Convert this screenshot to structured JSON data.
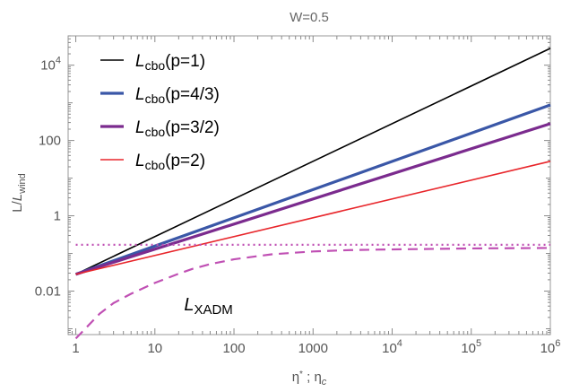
{
  "chart_data": {
    "type": "line",
    "title": "W=0.5",
    "xlabel": {
      "main": "η",
      "sub1": "*",
      "sep": " ; η",
      "sub2": "c"
    },
    "ylabel": {
      "main": "L/",
      "italic": "L",
      "sub": "wind"
    },
    "xscale": "log",
    "yscale": "log",
    "xlim": [
      0.8,
      1000000
    ],
    "ylim": [
      0.0007,
      60000
    ],
    "x_ticks": [
      {
        "value": 1,
        "label": "1"
      },
      {
        "value": 10,
        "label": "10"
      },
      {
        "value": 100,
        "label": "100"
      },
      {
        "value": 1000,
        "label": "1000"
      },
      {
        "value": 10000,
        "base": "10",
        "exp": "4"
      },
      {
        "value": 100000,
        "base": "10",
        "exp": "5"
      },
      {
        "value": 1000000,
        "base": "10",
        "exp": "6"
      }
    ],
    "y_ticks": [
      {
        "value": 0.01,
        "label": "0.01"
      },
      {
        "value": 1,
        "label": "1"
      },
      {
        "value": 100,
        "label": "100"
      },
      {
        "value": 10000,
        "base": "10",
        "exp": "4"
      }
    ],
    "series": [
      {
        "name": "L_cbo(p=1)",
        "label_main": "L",
        "label_sub": "cbo",
        "label_rest": "(p=1)",
        "color": "#000000",
        "style": "solid",
        "width": 1.6,
        "x": [
          1,
          1000000
        ],
        "y": [
          0.028,
          28000
        ]
      },
      {
        "name": "L_cbo(p=4/3)",
        "label_main": "L",
        "label_sub": "cbo",
        "label_rest": "(p=4/3)",
        "color": "#3a57a7",
        "style": "solid",
        "width": 3.2,
        "x": [
          1,
          1000000
        ],
        "y": [
          0.028,
          880
        ]
      },
      {
        "name": "L_cbo(p=3/2)",
        "label_main": "L",
        "label_sub": "cbo",
        "label_rest": "(p=3/2)",
        "color": "#7b2b8e",
        "style": "solid",
        "width": 3.2,
        "x": [
          1,
          1000000
        ],
        "y": [
          0.028,
          280
        ]
      },
      {
        "name": "L_cbo(p=2)",
        "label_main": "L",
        "label_sub": "cbo",
        "label_rest": "(p=2)",
        "color": "#e8262b",
        "style": "solid",
        "width": 1.6,
        "x": [
          1,
          1000000
        ],
        "y": [
          0.028,
          28
        ]
      },
      {
        "name": "",
        "color": "#c050b4",
        "style": "dotted",
        "width": 2.2,
        "x": [
          1,
          1000000
        ],
        "y": [
          0.17,
          0.17
        ]
      },
      {
        "name": "L_XADM",
        "color": "#c050b4",
        "style": "dashed",
        "width": 2.2,
        "x": [
          1,
          2,
          3,
          5,
          10,
          20,
          30,
          50,
          100,
          300,
          1000,
          3000,
          10000,
          100000,
          1000000
        ],
        "y": [
          0.00055,
          0.0025,
          0.0048,
          0.0085,
          0.0165,
          0.029,
          0.039,
          0.052,
          0.07,
          0.095,
          0.113,
          0.123,
          0.128,
          0.136,
          0.14
        ]
      }
    ],
    "annotation": {
      "main": "L",
      "sub": "XADM",
      "x": 20,
      "y": 0.0048
    },
    "legend_position": "top-left",
    "grid": false
  }
}
